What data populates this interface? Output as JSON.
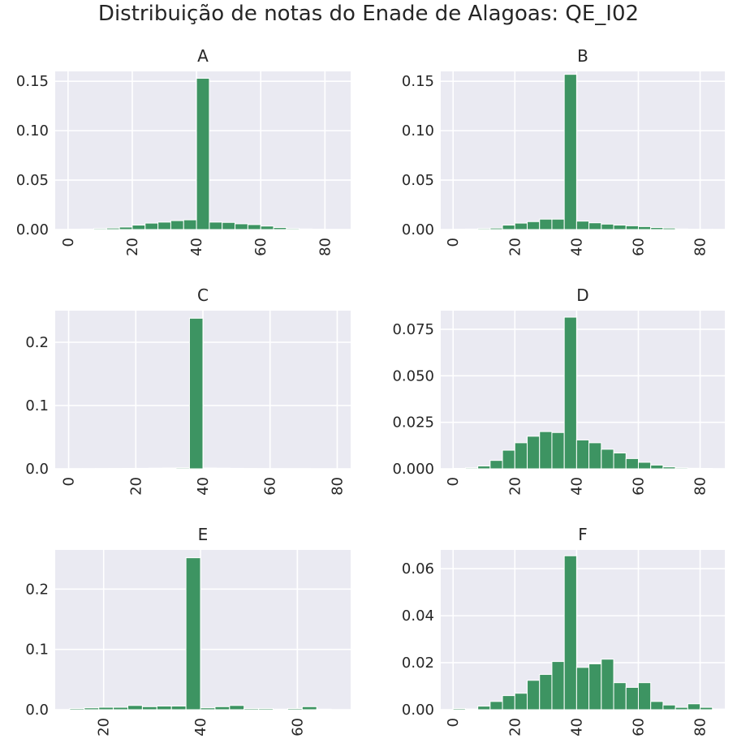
{
  "title": "Distribuição de notas do Enade de Alagoas: QE_I02",
  "colors": {
    "bar": "#3d9462",
    "background": "#eaeaf2",
    "grid": "#ffffff"
  },
  "chart_data": [
    {
      "type": "bar",
      "title": "A",
      "bin_width": 4,
      "xlim": [
        -4,
        88
      ],
      "ylim": [
        0,
        0.16
      ],
      "xticks": [
        0,
        20,
        40,
        60,
        80
      ],
      "yticks": [
        0,
        0.05,
        0.1,
        0.15
      ],
      "ytick_labels": [
        "0.00",
        "0.05",
        "0.10",
        "0.15"
      ],
      "bin_starts": [
        0,
        4,
        8,
        12,
        16,
        20,
        24,
        28,
        32,
        36,
        40,
        44,
        48,
        52,
        56,
        60,
        64,
        68,
        72,
        76,
        80,
        84
      ],
      "values": [
        0.0003,
        0.0005,
        0.001,
        0.0015,
        0.0025,
        0.0045,
        0.0065,
        0.0075,
        0.009,
        0.0098,
        0.153,
        0.0075,
        0.0072,
        0.0058,
        0.005,
        0.0035,
        0.002,
        0.001,
        0.0006,
        0.0004,
        0.0002,
        0.0001
      ]
    },
    {
      "type": "bar",
      "title": "B",
      "bin_width": 4,
      "xlim": [
        -4,
        88
      ],
      "ylim": [
        0,
        0.16
      ],
      "xticks": [
        0,
        20,
        40,
        60,
        80
      ],
      "yticks": [
        0,
        0.05,
        0.1,
        0.15
      ],
      "ytick_labels": [
        "0.00",
        "0.05",
        "0.10",
        "0.15"
      ],
      "bin_starts": [
        0,
        4,
        8,
        12,
        16,
        20,
        24,
        28,
        32,
        36,
        40,
        44,
        48,
        52,
        56,
        60,
        64,
        68,
        72,
        76,
        80,
        84
      ],
      "values": [
        0.0003,
        0.0005,
        0.001,
        0.0015,
        0.0045,
        0.0065,
        0.008,
        0.0105,
        0.0105,
        0.157,
        0.0085,
        0.0068,
        0.0055,
        0.0045,
        0.0038,
        0.003,
        0.002,
        0.0015,
        0.0006,
        0.0003,
        0.0002,
        0.0001
      ]
    },
    {
      "type": "bar",
      "title": "C",
      "bin_width": 4,
      "xlim": [
        -4,
        84
      ],
      "ylim": [
        0,
        0.25
      ],
      "xticks": [
        0,
        20,
        40,
        60,
        80
      ],
      "yticks": [
        0,
        0.1,
        0.2
      ],
      "ytick_labels": [
        "0.0",
        "0.1",
        "0.2"
      ],
      "bin_starts": [
        0,
        4,
        8,
        12,
        16,
        20,
        24,
        28,
        32,
        36,
        40,
        44,
        48,
        52,
        56,
        60,
        64,
        68,
        72,
        76
      ],
      "values": [
        0.0002,
        0.0003,
        0.0004,
        0.0005,
        0.0006,
        0.0008,
        0.001,
        0.0012,
        0.0015,
        0.238,
        0.0012,
        0.001,
        0.0008,
        0.0005,
        0.0004,
        0.0003,
        0.0002,
        0.0002,
        0.0001,
        0.0001
      ]
    },
    {
      "type": "bar",
      "title": "D",
      "bin_width": 4,
      "xlim": [
        -4,
        88
      ],
      "ylim": [
        0,
        0.085
      ],
      "xticks": [
        0,
        20,
        40,
        60,
        80
      ],
      "yticks": [
        0,
        0.025,
        0.05,
        0.075
      ],
      "ytick_labels": [
        "0.000",
        "0.025",
        "0.050",
        "0.075"
      ],
      "bin_starts": [
        0,
        4,
        8,
        12,
        16,
        20,
        24,
        28,
        32,
        36,
        40,
        44,
        48,
        52,
        56,
        60,
        64,
        68,
        72,
        76,
        80,
        84
      ],
      "values": [
        0.0002,
        0.0005,
        0.0015,
        0.0045,
        0.01,
        0.014,
        0.0175,
        0.02,
        0.0195,
        0.0815,
        0.0155,
        0.014,
        0.0105,
        0.0085,
        0.0055,
        0.0035,
        0.002,
        0.001,
        0.0005,
        0.0003,
        0.0002,
        0.0001
      ]
    },
    {
      "type": "bar",
      "title": "E",
      "bin_width": 3,
      "xlim": [
        10,
        71
      ],
      "ylim": [
        0,
        0.265
      ],
      "xticks": [
        20,
        40,
        60
      ],
      "yticks": [
        0,
        0.1,
        0.2
      ],
      "ytick_labels": [
        "0.0",
        "0.1",
        "0.2"
      ],
      "bin_starts": [
        13,
        16,
        19,
        22,
        25,
        28,
        31,
        34,
        37,
        40,
        43,
        46,
        49,
        52,
        55,
        58,
        61,
        64
      ],
      "values": [
        0.002,
        0.003,
        0.004,
        0.004,
        0.007,
        0.005,
        0.006,
        0.006,
        0.252,
        0.003,
        0.005,
        0.007,
        0.002,
        0.002,
        0.001,
        0.002,
        0.005,
        0.001
      ]
    },
    {
      "type": "bar",
      "title": "F",
      "bin_width": 4,
      "xlim": [
        -4,
        88
      ],
      "ylim": [
        0,
        0.068
      ],
      "xticks": [
        0,
        20,
        40,
        60,
        80
      ],
      "yticks": [
        0,
        0.02,
        0.04,
        0.06
      ],
      "ytick_labels": [
        "0.00",
        "0.02",
        "0.04",
        "0.06"
      ],
      "bin_starts": [
        0,
        4,
        8,
        12,
        16,
        20,
        24,
        28,
        32,
        36,
        40,
        44,
        48,
        52,
        56,
        60,
        64,
        68,
        72,
        76,
        80,
        84
      ],
      "values": [
        0.0005,
        0.0003,
        0.0015,
        0.0035,
        0.006,
        0.007,
        0.0125,
        0.015,
        0.0205,
        0.0655,
        0.018,
        0.0195,
        0.0215,
        0.0115,
        0.0095,
        0.0115,
        0.0035,
        0.002,
        0.001,
        0.0025,
        0.001,
        0.0003
      ]
    }
  ]
}
